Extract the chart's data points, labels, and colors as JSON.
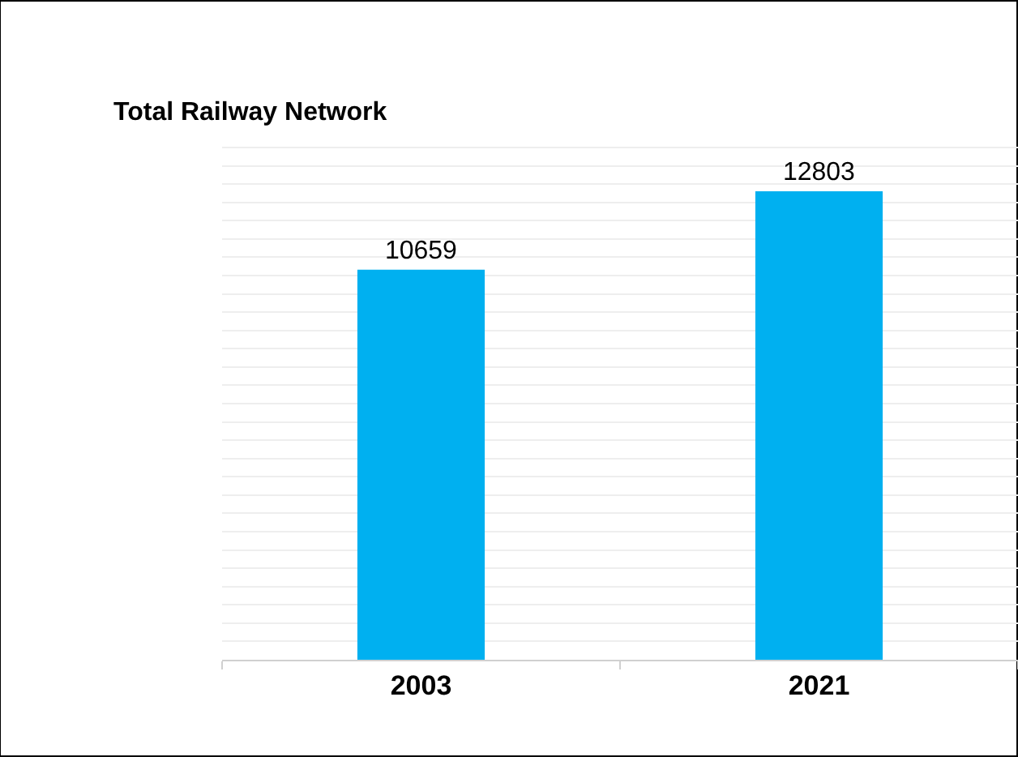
{
  "chart_data": {
    "type": "bar",
    "title": "Total Railway Network",
    "categories": [
      "2003",
      "2021"
    ],
    "values": [
      10659,
      12803
    ],
    "color": "#00b0f0",
    "data_labels": true,
    "grid": "y",
    "tick_labels": "x"
  }
}
